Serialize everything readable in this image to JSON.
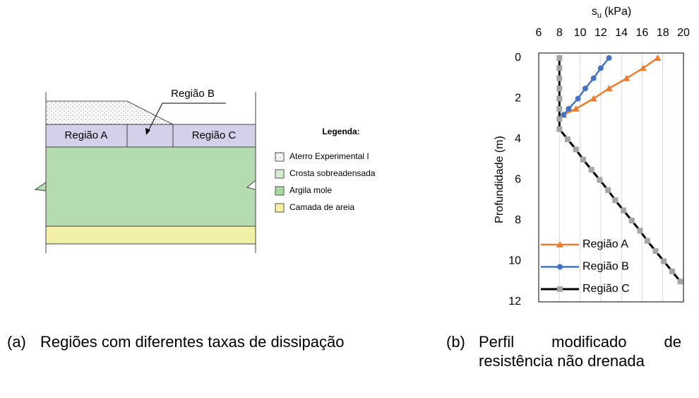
{
  "diagram": {
    "region_labels": [
      "Região A",
      "Região B",
      "Região C"
    ],
    "legend_title": "Legenda:",
    "legend_items": [
      "Aterro Experimental I",
      "Crosta sobreadensada",
      "Argila mole",
      "Camada de areia"
    ]
  },
  "captions": [
    {
      "tag": "(a)",
      "text": "Regiões com diferentes taxas de dissipação"
    },
    {
      "tag": "(b)",
      "text": "Perfil modificado de resistência não drenada"
    }
  ],
  "chart_data": {
    "type": "profile",
    "x_label": {
      "main": "s",
      "sub": "u",
      "unit": "(kPa)"
    },
    "y_label": "Profundidade (m)",
    "xlim": [
      6,
      20
    ],
    "xticks": [
      6,
      8,
      10,
      12,
      14,
      16,
      18,
      20
    ],
    "ylim": [
      0,
      12
    ],
    "yticks": [
      0,
      2,
      4,
      6,
      8,
      10,
      12
    ],
    "y_inverted": true,
    "grid": "x",
    "legend": "lower left",
    "series": [
      {
        "name": "Região A",
        "color": "#ed7d31",
        "marker": "triangle",
        "x": [
          17.5,
          16.1,
          14.5,
          12.8,
          11.3,
          9.6,
          8.4
        ],
        "y": [
          0,
          0.5,
          1,
          1.5,
          2,
          2.5,
          2.8
        ]
      },
      {
        "name": "Região B",
        "color": "#4472c4",
        "marker": "circle",
        "x": [
          12.8,
          12.0,
          11.3,
          10.5,
          9.8,
          8.9,
          8.4
        ],
        "y": [
          0,
          0.5,
          1,
          1.5,
          2,
          2.5,
          2.8
        ]
      },
      {
        "name": "Região C",
        "color": "#000000",
        "marker_color": "#a5a5a5",
        "marker": "square",
        "x": [
          8.0,
          8.0,
          8.0,
          8.0,
          8.0,
          8.0,
          8.0,
          8.0,
          8.8,
          9.6,
          10.3,
          11.1,
          11.9,
          12.7,
          13.4,
          14.2,
          15.0,
          15.8,
          16.5,
          17.3,
          18.1,
          18.9,
          19.7
        ],
        "y": [
          0,
          0.5,
          1,
          1.5,
          2,
          2.5,
          3,
          3.5,
          4,
          4.5,
          5,
          5.5,
          6,
          6.5,
          7,
          7.5,
          8,
          8.5,
          9,
          9.5,
          10,
          10.5,
          11
        ]
      }
    ]
  }
}
